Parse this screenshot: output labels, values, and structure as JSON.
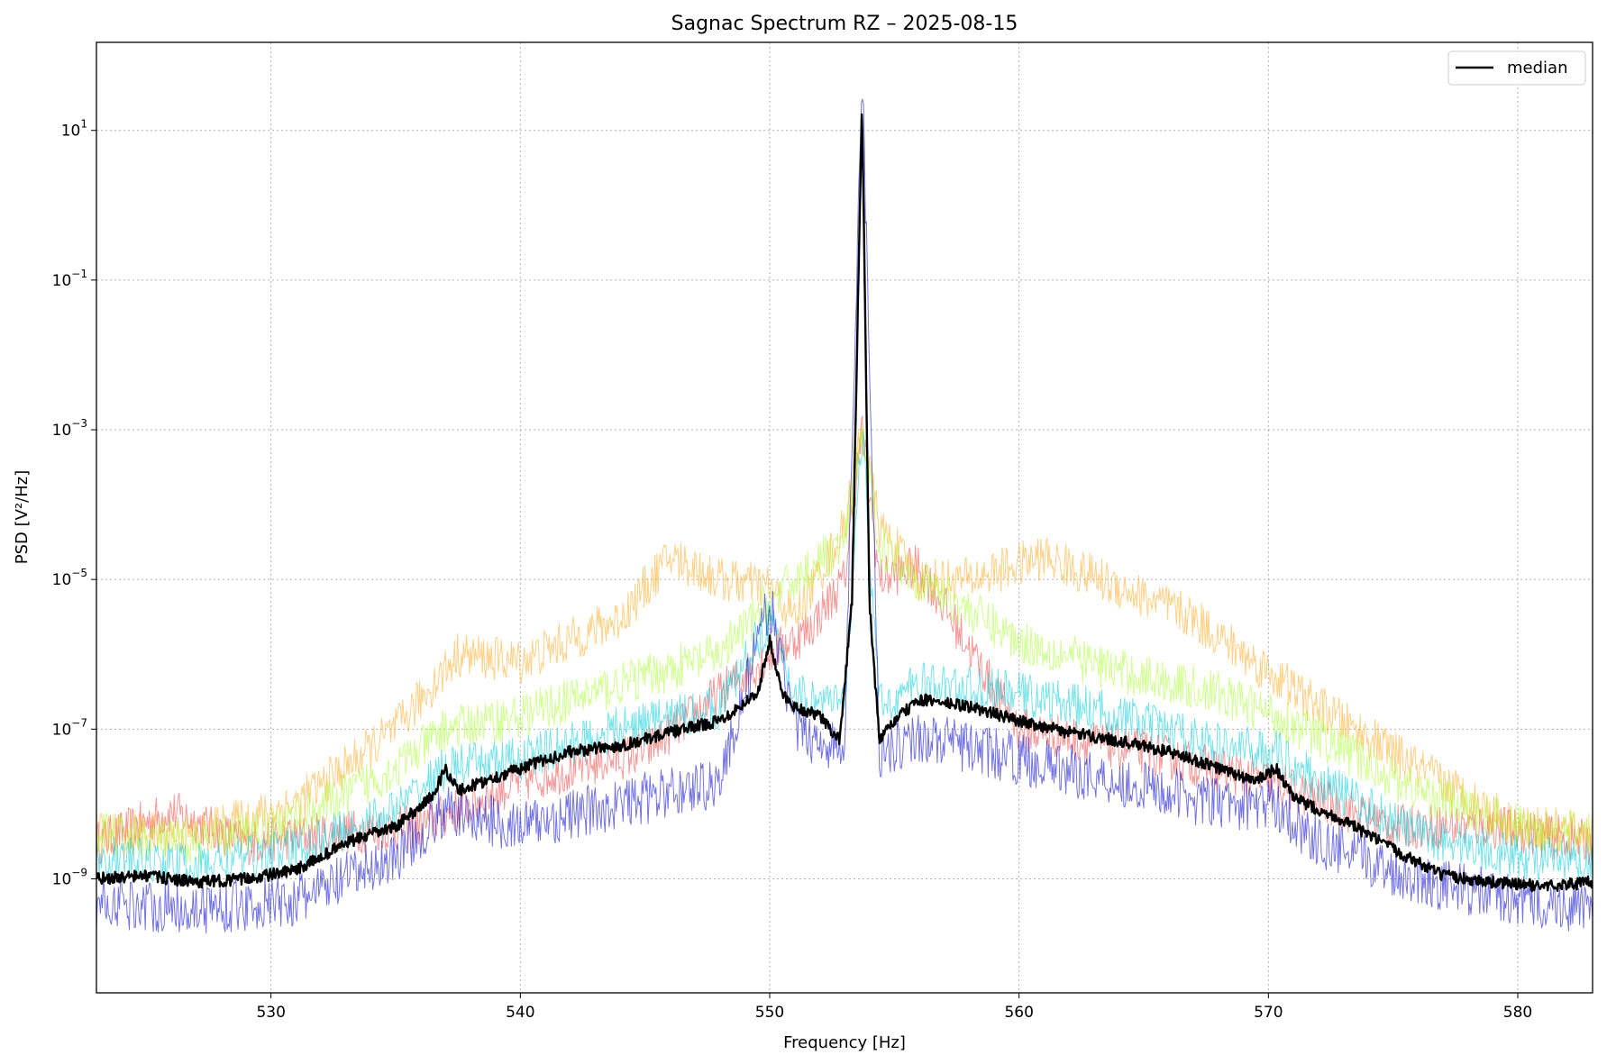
{
  "chart_data": {
    "type": "line",
    "title": "Sagnac Spectrum RZ – 2025-08-15",
    "xlabel": "Frequency [Hz]",
    "ylabel": "PSD [V²/Hz]",
    "xlim": [
      523,
      583
    ],
    "ylim": [
      3e-11,
      150
    ],
    "y_scale": "log",
    "grid": true,
    "legend_position": "top-right",
    "x_ticks": [
      530,
      540,
      550,
      560,
      570,
      580
    ],
    "y_ticks": [
      {
        "value": 1e-09,
        "base": "10",
        "exp": "−9"
      },
      {
        "value": 1e-07,
        "base": "10",
        "exp": "−7"
      },
      {
        "value": 1e-05,
        "base": "10",
        "exp": "−5"
      },
      {
        "value": 0.001,
        "base": "10",
        "exp": "−3"
      },
      {
        "value": 0.1,
        "base": "10",
        "exp": "−1"
      },
      {
        "value": 10,
        "base": "10",
        "exp": "1"
      }
    ],
    "series": [
      {
        "name": "median",
        "color": "#000000",
        "x": [
          523,
          525,
          527,
          529,
          531,
          533,
          535,
          536.5,
          537,
          537.5,
          540,
          542,
          544,
          546,
          548,
          549.5,
          550,
          550.5,
          551,
          552,
          552.8,
          553.3,
          553.7,
          554,
          554.4,
          555,
          556,
          558,
          560,
          562,
          564,
          566,
          568,
          569.5,
          570.3,
          571,
          573,
          575,
          577,
          579,
          581,
          583
        ],
        "y": [
          1e-09,
          1.1e-09,
          9e-10,
          1e-09,
          1.3e-09,
          3e-09,
          5e-09,
          1.3e-08,
          3e-08,
          1.5e-08,
          3e-08,
          5e-08,
          6e-08,
          9e-08,
          1.3e-07,
          3e-07,
          1.5e-06,
          3e-07,
          2e-07,
          1.5e-07,
          7e-08,
          5e-06,
          25,
          5e-06,
          7e-08,
          1.3e-07,
          2.5e-07,
          2e-07,
          1.3e-07,
          9e-08,
          7e-08,
          5e-08,
          3e-08,
          2e-08,
          3e-08,
          1.2e-08,
          6e-09,
          2.5e-09,
          1.1e-09,
          9e-10,
          8e-10,
          9e-10
        ]
      },
      {
        "color": "#0000cc",
        "x": [
          523,
          527,
          531,
          535,
          537,
          540,
          544,
          548,
          550,
          551,
          553,
          553.7,
          554.4,
          556,
          560,
          564,
          568,
          570.3,
          572,
          576,
          580,
          583
        ],
        "y": [
          5e-10,
          4e-10,
          5e-10,
          2e-09,
          8e-09,
          5e-09,
          1e-08,
          2e-08,
          5e-06,
          1e-07,
          5e-08,
          80,
          5e-08,
          8e-08,
          4e-08,
          2e-08,
          1e-08,
          1e-08,
          3e-09,
          1e-09,
          5e-10,
          4e-10
        ]
      },
      {
        "color": "#00ccdd",
        "x": [
          523,
          527,
          531,
          535,
          537,
          540,
          544,
          548,
          550,
          551,
          553,
          553.7,
          554.4,
          556,
          560,
          564,
          568,
          570.3,
          572,
          576,
          580,
          583
        ],
        "y": [
          2e-09,
          1.5e-09,
          2.5e-09,
          8e-09,
          3e-08,
          4e-08,
          1e-07,
          2e-07,
          3e-06,
          3e-07,
          2e-07,
          0.001,
          2e-07,
          4e-07,
          3e-07,
          1.5e-07,
          6e-08,
          5e-08,
          2e-08,
          4e-09,
          2e-09,
          1.5e-09
        ]
      },
      {
        "color": "#aaff33",
        "x": [
          523,
          527,
          531,
          535,
          537,
          540,
          544,
          548,
          550,
          551,
          553,
          553.7,
          554.4,
          556,
          560,
          564,
          568,
          570.3,
          572,
          576,
          580,
          583
        ],
        "y": [
          4e-09,
          3e-09,
          6e-09,
          3e-08,
          1e-07,
          1.5e-07,
          4e-07,
          1e-06,
          5e-06,
          1e-05,
          3e-05,
          0.001,
          3e-05,
          1e-05,
          1.5e-06,
          6e-07,
          3e-07,
          1.5e-07,
          8e-08,
          1.5e-08,
          5e-09,
          4e-09
        ]
      },
      {
        "color": "#ffaa22",
        "x": [
          523,
          527,
          531,
          535,
          537.5,
          540,
          544,
          546,
          548,
          550,
          551,
          553,
          553.7,
          554.4,
          556,
          558,
          561,
          564,
          567,
          569,
          572,
          576,
          580,
          583
        ],
        "y": [
          4e-09,
          4e-09,
          1e-08,
          1e-07,
          1e-06,
          8e-07,
          3e-06,
          2e-05,
          1e-05,
          8e-06,
          3e-06,
          5e-05,
          0.001,
          5e-05,
          1e-05,
          1e-05,
          2e-05,
          8e-06,
          3e-06,
          1e-06,
          2e-07,
          3e-08,
          5e-09,
          4e-09
        ]
      },
      {
        "color": "#ee4444",
        "x": [
          523,
          526,
          529,
          532,
          536,
          540,
          545,
          550,
          551.5,
          553,
          553.7,
          554.4,
          556,
          560,
          565,
          570,
          575,
          579,
          583
        ],
        "y": [
          3e-09,
          8e-09,
          3e-09,
          4e-09,
          5e-09,
          2e-08,
          5e-08,
          1e-06,
          2e-06,
          1e-05,
          0.001,
          1e-05,
          1.5e-05,
          1e-07,
          5e-08,
          2e-08,
          5e-09,
          5e-09,
          3e-09
        ]
      }
    ]
  }
}
